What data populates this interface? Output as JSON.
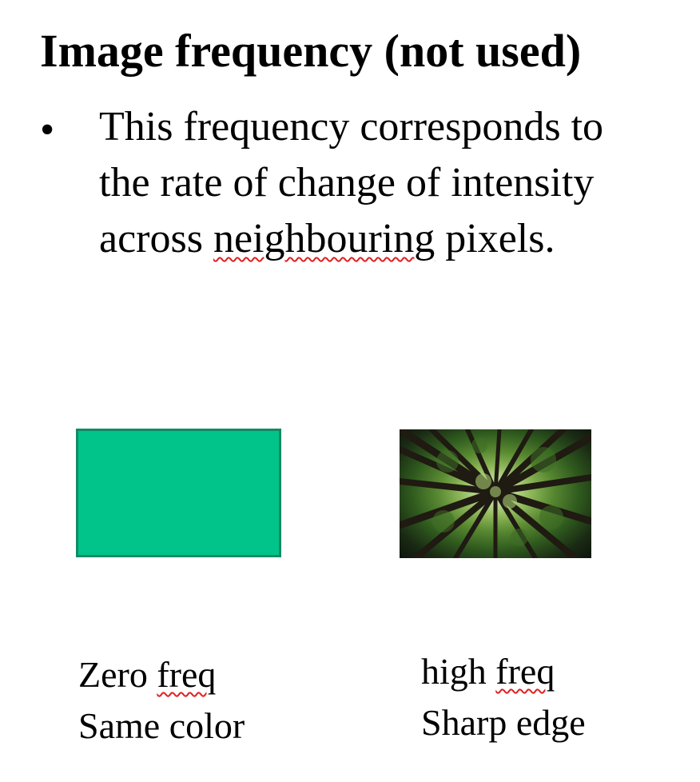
{
  "slide": {
    "title": "Image frequency (not used)",
    "bullet": {
      "marker": "•",
      "line1": "This frequency corresponds to",
      "line2": "the rate of change of intensity",
      "line3_before": "across ",
      "line3_flagged": "neighbouring",
      "line3_after": " pixels."
    },
    "left_example": {
      "swatch_color": "#00c48a",
      "caption_line1_before": "Zero ",
      "caption_line1_flagged": "freq",
      "caption_line2": "Same color"
    },
    "right_example": {
      "image_subject": "forest-canopy-photo",
      "caption_line1_before": "high ",
      "caption_line1_flagged": "freq",
      "caption_line2": "Sharp edge"
    }
  }
}
